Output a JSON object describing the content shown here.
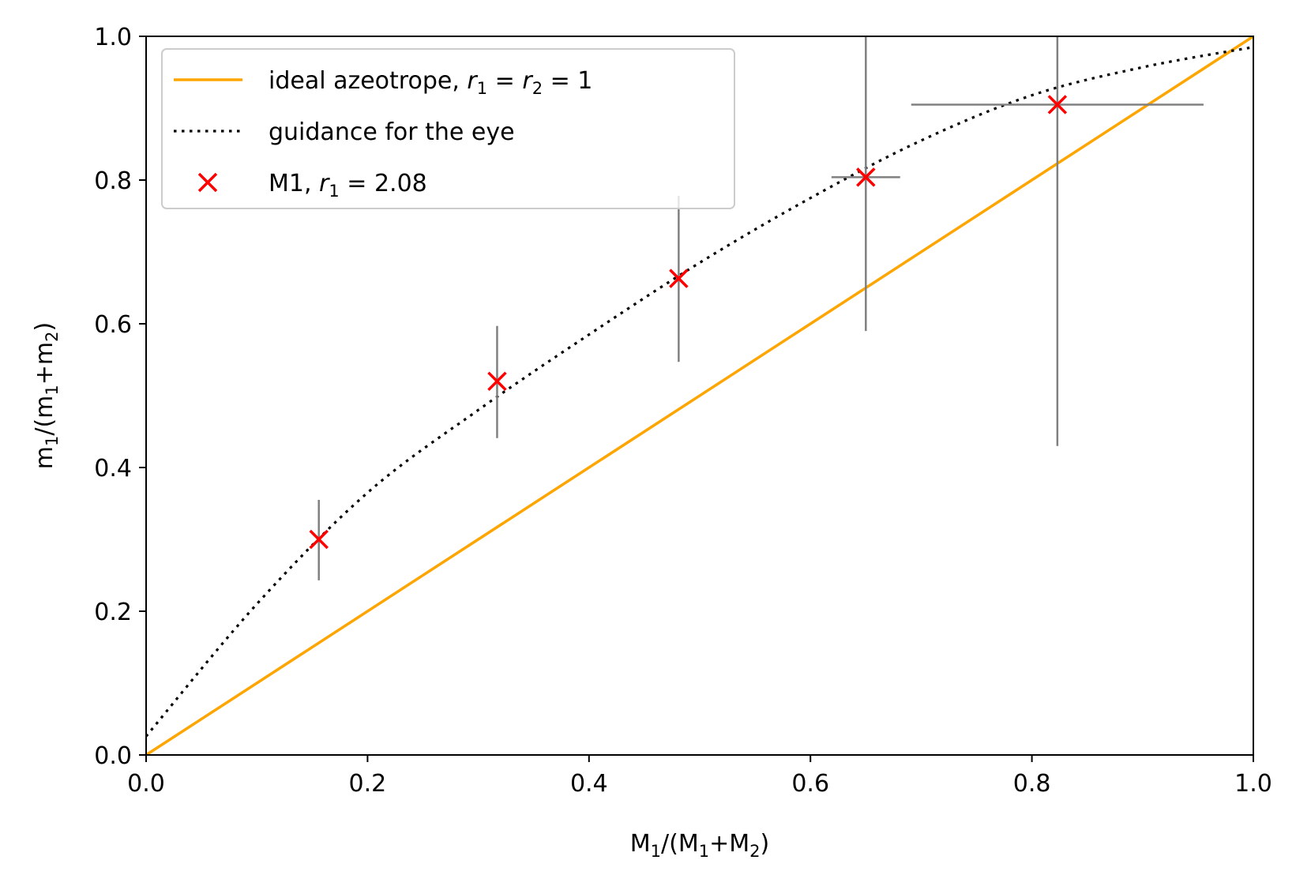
{
  "chart_data": {
    "type": "scatter",
    "xlabel": "M₁/(M₁+M₂)",
    "ylabel": "m₁/(m₁+m₂)",
    "xlim": [
      0.0,
      1.0
    ],
    "ylim": [
      0.0,
      1.0
    ],
    "xticks": [
      "0.0",
      "0.2",
      "0.4",
      "0.6",
      "0.8",
      "1.0"
    ],
    "yticks": [
      "0.0",
      "0.2",
      "0.4",
      "0.6",
      "0.8",
      "1.0"
    ],
    "grid": false,
    "legend_position": "top-left",
    "series": [
      {
        "name": "ideal azeotrope, r₁ = r₂ = 1",
        "kind": "line",
        "style": "solid",
        "color": "#ffa500",
        "x": [
          0.0,
          1.0
        ],
        "y": [
          0.0,
          1.0
        ]
      },
      {
        "name": "guidance for the eye",
        "kind": "line",
        "style": "dotted",
        "color": "#000000",
        "x": [
          0.0,
          0.1,
          0.2,
          0.3,
          0.4,
          0.5,
          0.6,
          0.7,
          0.8,
          0.9,
          1.0
        ],
        "y": [
          0.026,
          0.21,
          0.365,
          0.48,
          0.585,
          0.685,
          0.775,
          0.855,
          0.918,
          0.957,
          0.985
        ]
      },
      {
        "name": "M1, r₁ = 2.08",
        "kind": "scatter",
        "marker": "x",
        "color": "#ff0000",
        "errorbar_color": "#808080",
        "points": [
          {
            "x": 0.156,
            "y": 0.3,
            "xerr": [
              0.0,
              0.0
            ],
            "yerr": [
              0.057,
              0.055
            ]
          },
          {
            "x": 0.317,
            "y": 0.52,
            "xerr": [
              0.0,
              0.0
            ],
            "yerr": [
              0.079,
              0.077
            ]
          },
          {
            "x": 0.481,
            "y": 0.663,
            "xerr": [
              0.0,
              0.0
            ],
            "yerr": [
              0.116,
              0.115
            ]
          },
          {
            "x": 0.65,
            "y": 0.804,
            "xerr": [
              0.031,
              0.031
            ],
            "yerr": [
              0.214,
              0.196
            ]
          },
          {
            "x": 0.823,
            "y": 0.905,
            "xerr": [
              0.132,
              0.132
            ],
            "yerr": [
              0.475,
              0.095
            ]
          }
        ]
      }
    ],
    "legend": {
      "entries": [
        {
          "prefix": "ideal azeotrope, ",
          "sym1": "r",
          "sub1": "1",
          "mid": " = ",
          "sym2": "r",
          "sub2": "2",
          "suffix": " = 1"
        },
        {
          "prefix": "guidance for the eye"
        },
        {
          "prefix": "M1, ",
          "sym1": "r",
          "sub1": "1",
          "suffix": " = 2.08"
        }
      ]
    },
    "axis_titles": {
      "x": {
        "pre": "M",
        "sub1": "1",
        "mid": "/(M",
        "sub2": "1",
        "mid2": "+M",
        "sub3": "2",
        "post": ")"
      },
      "y": {
        "pre": "m",
        "sub1": "1",
        "mid": "/(m",
        "sub2": "1",
        "mid2": "+m",
        "sub3": "2",
        "post": ")"
      }
    }
  }
}
